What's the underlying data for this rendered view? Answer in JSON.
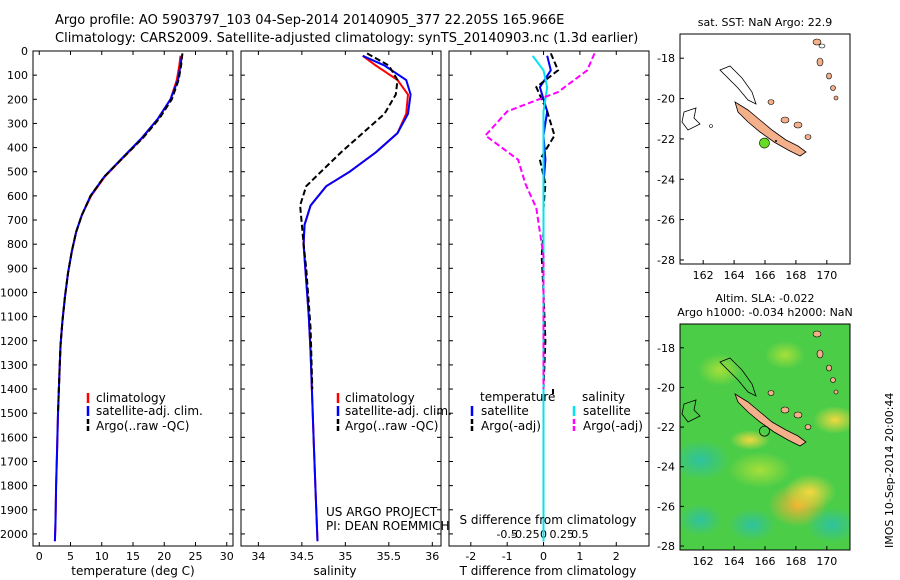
{
  "header": {
    "line1": "Argo profile: AO 5903797_103 04-Sep-2014 20140905_377 22.205S 165.966E",
    "line2": "Climatology: CARS2009. Satellite-adjusted climatology: synTS_20140903.nc (1.3d earlier)"
  },
  "credits": {
    "project": "US ARGO PROJECT",
    "pi": "PI: DEAN ROEMMICH",
    "vertical_stamp": "IMOS 10-Sep-2014 20:00:44"
  },
  "colors": {
    "climatology": "#ff0000",
    "satellite": "#0000ff",
    "argo": "#000000",
    "salinity_satellite": "#00e5ee",
    "salinity_argo": "#ff00ff",
    "land": "#f4b08a",
    "argo_marker": "#66dd22"
  },
  "chart_data": [
    {
      "id": "temperature",
      "type": "line",
      "xlabel": "temperature (deg C)",
      "ylabel": "",
      "xlim": [
        -1,
        31
      ],
      "ylim": [
        2050,
        0
      ],
      "xticks": [
        0,
        5,
        10,
        15,
        20,
        25,
        30
      ],
      "yticks": [
        0,
        100,
        200,
        300,
        400,
        500,
        600,
        700,
        800,
        900,
        1000,
        1100,
        1200,
        1300,
        1400,
        1500,
        1600,
        1700,
        1800,
        1900,
        2000
      ],
      "legend": [
        "climatology",
        "satellite-adj. clim.",
        "Argo(..raw -QC)"
      ],
      "series": [
        {
          "name": "climatology",
          "x": [
            22.6,
            22.4,
            22,
            21,
            19,
            16.5,
            13.5,
            10.5,
            8.3,
            6.8,
            5.9,
            5.2,
            4.6,
            4.1,
            3.7,
            3.4,
            3.2,
            3.0,
            2.85,
            2.7,
            2.6,
            2.5
          ],
          "y": [
            20,
            60,
            120,
            200,
            280,
            360,
            440,
            520,
            600,
            680,
            750,
            830,
            920,
            1020,
            1120,
            1220,
            1350,
            1500,
            1650,
            1800,
            1950,
            2030
          ]
        },
        {
          "name": "satellite-adj. clim.",
          "x": [
            22.8,
            22.6,
            22.2,
            21,
            19,
            16.4,
            13.4,
            10.4,
            8.2,
            6.8,
            5.9,
            5.2,
            4.6,
            4.1,
            3.7,
            3.4,
            3.2,
            3.0,
            2.85,
            2.7,
            2.6,
            2.5
          ],
          "y": [
            20,
            60,
            120,
            200,
            280,
            360,
            440,
            520,
            600,
            680,
            750,
            830,
            920,
            1020,
            1120,
            1220,
            1350,
            1500,
            1650,
            1800,
            1950,
            2030
          ]
        },
        {
          "name": "Argo(..raw -QC)",
          "x": [
            22.9,
            22.7,
            22.3,
            21.2,
            19.2,
            16.6,
            13.5,
            10.4,
            8.2,
            6.8,
            5.9,
            5.2,
            4.6,
            4.1,
            3.7,
            3.4,
            3.2,
            3.0
          ],
          "y": [
            10,
            60,
            120,
            200,
            280,
            360,
            440,
            520,
            600,
            680,
            750,
            830,
            920,
            1020,
            1120,
            1220,
            1350,
            1500
          ]
        }
      ]
    },
    {
      "id": "salinity",
      "type": "line",
      "xlabel": "salinity",
      "ylabel": "",
      "xlim": [
        33.8,
        36.1
      ],
      "ylim": [
        2050,
        0
      ],
      "xticks": [
        34,
        34.5,
        35,
        35.5,
        36
      ],
      "legend": [
        "climatology",
        "satellite-adj. clim.",
        "Argo(..raw -QC)"
      ],
      "series": [
        {
          "name": "climatology",
          "x": [
            35.2,
            35.35,
            35.6,
            35.72,
            35.7,
            35.6,
            35.35,
            35.05,
            34.78,
            34.6,
            34.53,
            34.52,
            34.54,
            34.56,
            34.58,
            34.6,
            34.62,
            34.64,
            34.66,
            34.68
          ],
          "y": [
            20,
            60,
            120,
            180,
            260,
            340,
            420,
            500,
            560,
            640,
            720,
            800,
            900,
            1000,
            1100,
            1250,
            1450,
            1650,
            1850,
            2030
          ]
        },
        {
          "name": "satellite-adj. clim.",
          "x": [
            35.2,
            35.45,
            35.7,
            35.75,
            35.72,
            35.6,
            35.35,
            35.05,
            34.78,
            34.6,
            34.53,
            34.52,
            34.54,
            34.56,
            34.58,
            34.6,
            34.62,
            34.64,
            34.66,
            34.68
          ],
          "y": [
            20,
            60,
            120,
            180,
            260,
            340,
            420,
            500,
            560,
            640,
            720,
            800,
            900,
            1000,
            1100,
            1250,
            1450,
            1650,
            1850,
            2030
          ]
        },
        {
          "name": "Argo(..raw -QC)",
          "x": [
            35.25,
            35.5,
            35.6,
            35.58,
            35.45,
            35.2,
            34.95,
            34.72,
            34.55,
            34.48,
            34.5,
            34.52,
            34.55,
            34.57,
            34.6,
            34.62
          ],
          "y": [
            10,
            60,
            120,
            180,
            260,
            340,
            420,
            500,
            560,
            640,
            720,
            800,
            900,
            1000,
            1150,
            1400
          ]
        }
      ]
    },
    {
      "id": "difference",
      "type": "line",
      "xlabel": "T difference from climatology",
      "x2label": "S difference from climatology",
      "xlim": [
        -2.6,
        2.9
      ],
      "ylim": [
        2050,
        0
      ],
      "xticks": [
        -2,
        -1,
        0,
        1,
        2
      ],
      "x2ticks": [
        "-0.5",
        "-0.25",
        "0",
        "0.25",
        "0.5"
      ],
      "legend_headers": [
        "temperature",
        "salinity"
      ],
      "legend": [
        "satellite",
        "Argo(-adj)",
        "satellite",
        "Argo(-adj)"
      ],
      "series": [
        {
          "name": "temperature satellite",
          "x": [
            0.1,
            0.2,
            -0.1,
            0.1,
            0,
            0.05,
            0,
            0,
            0,
            0,
            0,
            0,
            0,
            0,
            0,
            0,
            0
          ],
          "y": [
            20,
            80,
            150,
            250,
            350,
            450,
            550,
            650,
            750,
            850,
            1000,
            1200,
            1400,
            1600,
            1800,
            1950,
            2030
          ]
        },
        {
          "name": "temperature Argo(-adj)",
          "x": [
            0.2,
            0.4,
            -0.2,
            0.1,
            0.3,
            -0.1,
            0.05,
            0,
            0,
            -0.05,
            0,
            0.05,
            0
          ],
          "y": [
            10,
            80,
            150,
            250,
            350,
            450,
            550,
            650,
            750,
            850,
            1000,
            1200,
            1400
          ]
        },
        {
          "name": "salinity satellite",
          "x": [
            -0.3,
            0,
            0.1,
            0,
            0,
            0,
            0,
            0,
            0,
            0,
            0
          ],
          "y": [
            20,
            80,
            150,
            250,
            400,
            600,
            800,
            1000,
            1400,
            1800,
            2030
          ]
        },
        {
          "name": "salinity Argo(-adj)",
          "x": [
            1.4,
            1.2,
            0.4,
            -1.0,
            -1.6,
            -0.7,
            -0.5,
            -0.2,
            -0.1,
            0,
            0,
            0
          ],
          "y": [
            10,
            80,
            170,
            250,
            350,
            450,
            550,
            650,
            750,
            850,
            1000,
            1400
          ]
        }
      ]
    },
    {
      "id": "sst-map",
      "type": "heatmap",
      "title": "sat. SST: NaN Argo: 22.9",
      "xlim": [
        160.5,
        171.5
      ],
      "ylim": [
        -28.2,
        -16.8
      ],
      "xticks": [
        162,
        164,
        166,
        168,
        170
      ],
      "yticks": [
        -18,
        -20,
        -22,
        -24,
        -26,
        -28
      ],
      "argo_position": {
        "lon": 165.966,
        "lat": -22.205
      }
    },
    {
      "id": "sla-map",
      "type": "heatmap",
      "title_line1": "Altim. SLA: -0.022",
      "title_line2": "Argo h1000: -0.034 h2000: NaN",
      "xlim": [
        160.5,
        171.5
      ],
      "ylim": [
        -28.2,
        -16.8
      ],
      "xticks": [
        162,
        164,
        166,
        168,
        170
      ],
      "yticks": [
        -18,
        -20,
        -22,
        -24,
        -26,
        -28
      ],
      "argo_position": {
        "lon": 165.966,
        "lat": -22.205
      }
    }
  ]
}
